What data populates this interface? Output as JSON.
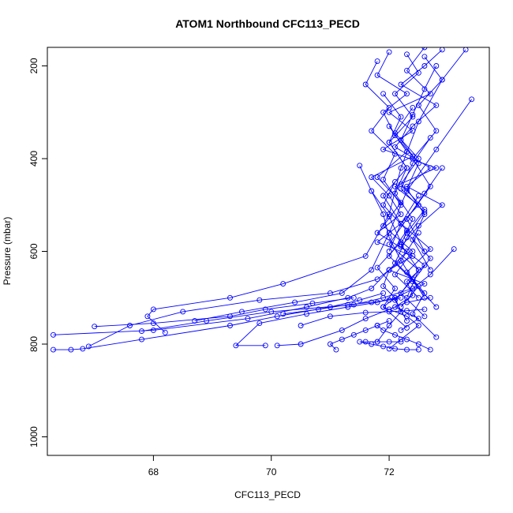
{
  "chart_data": {
    "type": "line",
    "title": "ATOM1 Northbound CFC113_PECD",
    "xlabel": "CFC113_PECD",
    "ylabel": "Pressure (mbar)",
    "xlim": [
      66.2,
      73.7
    ],
    "ylim": [
      1040,
      160
    ],
    "y_axis_inverted": true,
    "x_ticks": [
      68,
      70,
      72
    ],
    "y_ticks": [
      200,
      400,
      600,
      800,
      1000
    ],
    "grid": false,
    "legend": "none",
    "series_color": "#0000ff",
    "marker": "open-circle",
    "series": [
      {
        "x": [
          72.6,
          72.3,
          72.7,
          72.0,
          72.4,
          71.9,
          72.8,
          72.1,
          72.5,
          72.2,
          71.8,
          72.4,
          72.0,
          72.6,
          72.1,
          71.9,
          72.3,
          72.5,
          72.2,
          72.0
        ],
        "y": [
          160,
          210,
          260,
          300,
          340,
          380,
          420,
          460,
          500,
          540,
          580,
          610,
          640,
          670,
          700,
          720,
          740,
          760,
          790,
          810
        ]
      },
      {
        "x": [
          72.9,
          72.6,
          72.2,
          72.8,
          72.4,
          72.1,
          72.7,
          72.3,
          72.9,
          72.5,
          72.2,
          72.6,
          72.3,
          72.4,
          72.1,
          72.5,
          72.2
        ],
        "y": [
          165,
          200,
          240,
          285,
          330,
          375,
          420,
          460,
          500,
          545,
          590,
          630,
          665,
          695,
          720,
          745,
          770
        ]
      },
      {
        "x": [
          72.0,
          71.8,
          72.3,
          71.9,
          72.1,
          72.4,
          71.7,
          72.0,
          72.2,
          71.8,
          72.3,
          72.0,
          71.9,
          72.1,
          72.2,
          72.0,
          71.8
        ],
        "y": [
          170,
          220,
          260,
          300,
          350,
          395,
          440,
          480,
          520,
          560,
          600,
          640,
          675,
          700,
          730,
          760,
          795
        ]
      },
      {
        "x": [
          73.3,
          72.9,
          72.5,
          72.2,
          72.0,
          71.6,
          70.2,
          69.3,
          68.0,
          67.9,
          68.2
        ],
        "y": [
          165,
          230,
          320,
          420,
          520,
          610,
          670,
          700,
          725,
          740,
          775
        ]
      },
      {
        "x": [
          73.4,
          72.8,
          72.3,
          72.0,
          71.7,
          71.2,
          70.4,
          69.5,
          68.7
        ],
        "y": [
          272,
          380,
          470,
          560,
          640,
          690,
          710,
          730,
          750
        ]
      },
      {
        "x": [
          73.1,
          72.7,
          72.4,
          71.9,
          71.4,
          70.0,
          68.9,
          67.8
        ],
        "y": [
          595,
          650,
          680,
          700,
          715,
          730,
          750,
          772
        ]
      },
      {
        "x": [
          72.5,
          72.2,
          71.8,
          71.0,
          69.8,
          68.5,
          67.6,
          66.9
        ],
        "y": [
          560,
          620,
          660,
          690,
          705,
          730,
          760,
          805
        ]
      },
      {
        "x": [
          72.0,
          71.7,
          71.3,
          70.6,
          69.6,
          68.0,
          66.3
        ],
        "y": [
          640,
          680,
          700,
          720,
          745,
          770,
          780
        ]
      },
      {
        "x": [
          71.9,
          71.5,
          71.0,
          70.1,
          69.3,
          67.8,
          66.8,
          66.6,
          66.3
        ],
        "y": [
          690,
          705,
          720,
          740,
          760,
          790,
          810,
          812,
          812
        ]
      },
      {
        "x": [
          71.4,
          70.7,
          69.9,
          69.3,
          68.0,
          67.0
        ],
        "y": [
          700,
          712,
          725,
          740,
          755,
          762
        ]
      },
      {
        "x": [
          72.1,
          71.8,
          71.3,
          70.6,
          69.8,
          69.4,
          69.9
        ],
        "y": [
          700,
          710,
          720,
          735,
          755,
          803,
          803
        ]
      },
      {
        "x": [
          72.7,
          72.3,
          72.0,
          71.6,
          71.2,
          70.5,
          70.1
        ],
        "y": [
          700,
          710,
          725,
          745,
          770,
          800,
          803
        ]
      },
      {
        "x": [
          71.8,
          71.6,
          71.4,
          71.2,
          71.0,
          71.1
        ],
        "y": [
          760,
          770,
          780,
          790,
          800,
          812
        ]
      },
      {
        "x": [
          72.2,
          72.0,
          71.8,
          71.6,
          71.5,
          71.7,
          71.9,
          72.1,
          72.3,
          72.5
        ],
        "y": [
          795,
          795,
          795,
          795,
          795,
          800,
          805,
          810,
          812,
          812
        ]
      },
      {
        "x": [
          72.7,
          72.5,
          72.3,
          72.1,
          71.9,
          71.8,
          72.0
        ],
        "y": [
          812,
          800,
          790,
          780,
          770,
          760,
          750
        ]
      },
      {
        "x": [
          71.5,
          71.7,
          71.9,
          72.0,
          72.2,
          72.4,
          72.6
        ],
        "y": [
          415,
          470,
          520,
          570,
          620,
          660,
          700
        ]
      },
      {
        "x": [
          71.8,
          71.6,
          72.0,
          71.7,
          72.1,
          71.9,
          72.2
        ],
        "y": [
          190,
          240,
          290,
          340,
          390,
          445,
          500
        ]
      },
      {
        "x": [
          72.6,
          72.9,
          72.5,
          72.8,
          72.4,
          72.7,
          72.3,
          72.6
        ],
        "y": [
          180,
          230,
          285,
          340,
          400,
          460,
          530,
          600
        ]
      },
      {
        "x": [
          72.3,
          72.5,
          72.1,
          72.4,
          72.0,
          72.3,
          71.9,
          72.2,
          72.0
        ],
        "y": [
          175,
          215,
          260,
          310,
          365,
          420,
          480,
          540,
          600
        ]
      },
      {
        "x": [
          72.8,
          72.6,
          72.4,
          72.2,
          72.5,
          72.3,
          72.6,
          72.4,
          72.7
        ],
        "y": [
          200,
          250,
          305,
          360,
          410,
          465,
          520,
          575,
          640
        ]
      },
      {
        "x": [
          71.9,
          72.2,
          72.0,
          72.3,
          72.1,
          72.4,
          72.2,
          72.5,
          72.3
        ],
        "y": [
          260,
          310,
          365,
          420,
          475,
          530,
          585,
          640,
          700
        ]
      },
      {
        "x": [
          72.4,
          72.1,
          72.5,
          72.2,
          72.6,
          72.3,
          72.7,
          72.4,
          72.8
        ],
        "y": [
          290,
          345,
          400,
          455,
          510,
          560,
          615,
          665,
          720
        ]
      },
      {
        "x": [
          72.0,
          72.3,
          71.8,
          72.2,
          71.9,
          72.4,
          72.1,
          72.5
        ],
        "y": [
          330,
          385,
          440,
          495,
          545,
          600,
          650,
          700
        ]
      },
      {
        "x": [
          72.7,
          72.4,
          72.2,
          72.6,
          72.3,
          72.1,
          72.5,
          72.2
        ],
        "y": [
          355,
          410,
          465,
          515,
          570,
          625,
          675,
          720
        ]
      },
      {
        "x": [
          72.1,
          71.9,
          72.3,
          72.0,
          72.4,
          72.1,
          72.3
        ],
        "y": [
          450,
          500,
          555,
          610,
          660,
          705,
          750
        ]
      },
      {
        "x": [
          72.9,
          72.6,
          72.3,
          72.0,
          72.5,
          72.2,
          72.6
        ],
        "y": [
          420,
          475,
          530,
          585,
          640,
          690,
          740
        ]
      },
      {
        "x": [
          71.7,
          72.0,
          72.2,
          71.8,
          72.1,
          71.9,
          72.3
        ],
        "y": [
          470,
          525,
          580,
          635,
          680,
          720,
          765
        ]
      },
      {
        "x": [
          72.5,
          72.2,
          72.7,
          72.3,
          72.6,
          72.4,
          72.8
        ],
        "y": [
          480,
          540,
          595,
          645,
          690,
          735,
          785
        ]
      },
      {
        "x": [
          72.2,
          72.0,
          71.7,
          71.3,
          70.8,
          70.2
        ],
        "y": [
          700,
          705,
          710,
          715,
          725,
          735
        ]
      },
      {
        "x": [
          72.6,
          72.3,
          72.0,
          71.6,
          71.0,
          70.5
        ],
        "y": [
          725,
          728,
          730,
          732,
          740,
          760
        ]
      }
    ]
  }
}
